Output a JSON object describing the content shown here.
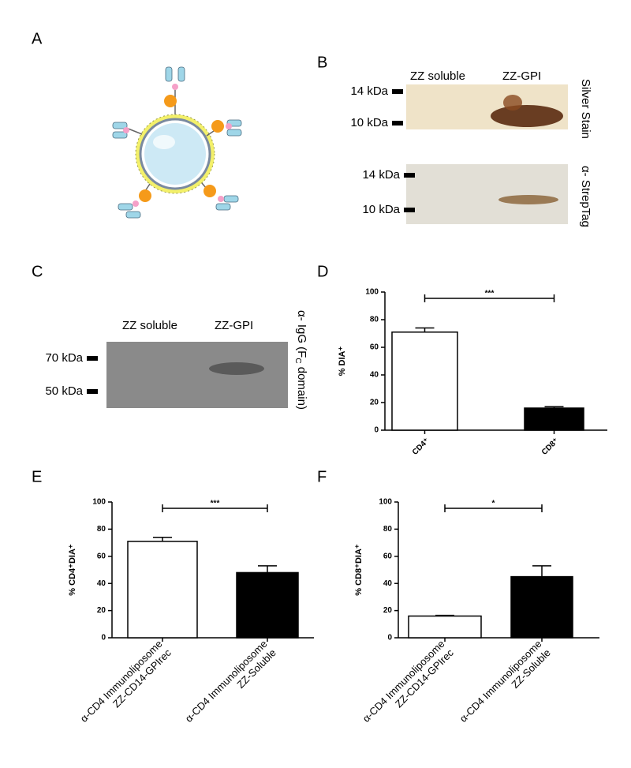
{
  "panel_labels": [
    "A",
    "B",
    "C",
    "D",
    "E",
    "F"
  ],
  "blot_b": {
    "lanes": [
      "ZZ soluble",
      "ZZ-GPI"
    ],
    "silver": {
      "title": "Silver Stain",
      "markers": [
        "14 kDa",
        "10 kDa"
      ]
    },
    "strep": {
      "title": "α- StrepTag",
      "markers": [
        "14 kDa",
        "10 kDa"
      ]
    }
  },
  "blot_c": {
    "lanes": [
      "ZZ soluble",
      "ZZ-GPI"
    ],
    "title": [
      "α- IgG (F",
      "C",
      " domain)"
    ],
    "markers": [
      "70 kDa",
      "50 kDa"
    ]
  },
  "chart_data": [
    {
      "type": "bar",
      "ylabel": "% DIA⁺",
      "categories": [
        "CD4⁺",
        "CD8⁺"
      ],
      "values": [
        71,
        16
      ],
      "errors": [
        3,
        1
      ],
      "colors": [
        "#ffffff",
        "#000000"
      ],
      "ylim": [
        0,
        100
      ],
      "yticks": [
        0,
        20,
        40,
        60,
        80,
        100
      ],
      "annotation": "***"
    },
    {
      "type": "bar",
      "ylabel": "% CD4⁺DIA⁺",
      "categories": [
        "α-CD4 Immunoliposome\nZZ-CD14-GPIrec",
        "α-CD4 Immunoliposome\nZZ-Soluble"
      ],
      "values": [
        71,
        48
      ],
      "errors": [
        3,
        5
      ],
      "colors": [
        "#ffffff",
        "#000000"
      ],
      "ylim": [
        0,
        100
      ],
      "yticks": [
        0,
        20,
        40,
        60,
        80,
        100
      ],
      "annotation": "***"
    },
    {
      "type": "bar",
      "ylabel": "% CD8⁺DIA⁺",
      "categories": [
        "α-CD4 Immunoliposome\nZZ-CD14-GPIrec",
        "α-CD4 Immunoliposome\nZZ-Soluble"
      ],
      "values": [
        16,
        45
      ],
      "errors": [
        0.5,
        8
      ],
      "colors": [
        "#ffffff",
        "#000000"
      ],
      "ylim": [
        0,
        100
      ],
      "yticks": [
        0,
        20,
        40,
        60,
        80,
        100
      ],
      "annotation": "*"
    }
  ]
}
